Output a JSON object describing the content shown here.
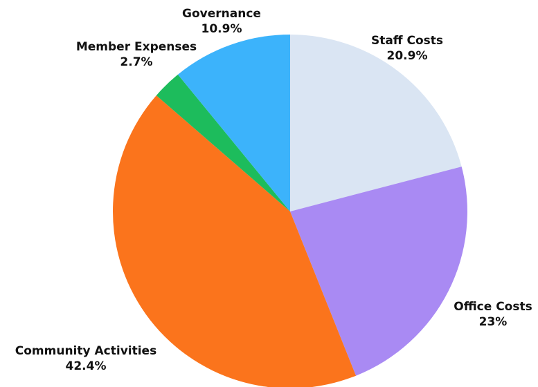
{
  "chart_data": {
    "type": "pie",
    "title": "",
    "start_angle": "12 o'clock",
    "direction": "clockwise",
    "slices": [
      {
        "label": "Staff Costs",
        "value": 20.9,
        "value_label": "20.9%",
        "color": "#dae5f3"
      },
      {
        "label": "Office Costs",
        "value": 23,
        "value_label": "23%",
        "color": "#a98af3"
      },
      {
        "label": "Community Activities",
        "value": 42.4,
        "value_label": "42.4%",
        "color": "#fb741c"
      },
      {
        "label": "Member Expenses",
        "value": 2.7,
        "value_label": "2.7%",
        "color": "#1dbc5c"
      },
      {
        "label": "Governance",
        "value": 10.9,
        "value_label": "10.9%",
        "color": "#3cb3fb"
      }
    ]
  }
}
